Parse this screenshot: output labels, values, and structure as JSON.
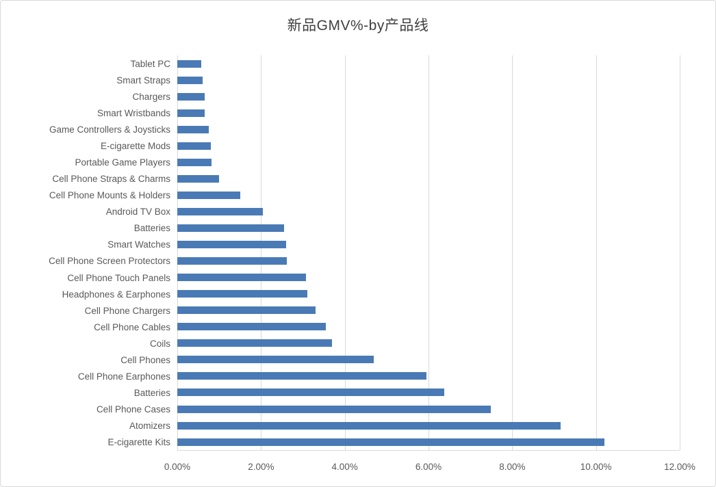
{
  "chart_data": {
    "type": "bar",
    "orientation": "horizontal",
    "title": "新品GMV%-by产品线",
    "categories": [
      "Tablet PC",
      "Smart Straps",
      "Chargers",
      "Smart Wristbands",
      "Game Controllers & Joysticks",
      "E-cigarette Mods",
      "Portable Game Players",
      "Cell Phone Straps & Charms",
      "Cell Phone Mounts & Holders",
      "Android TV Box",
      "Batteries",
      "Smart Watches",
      "Cell Phone Screen Protectors",
      "Cell Phone Touch Panels",
      "Headphones & Earphones",
      "Cell Phone Chargers",
      "Cell Phone Cables",
      "Coils",
      "Cell Phones",
      "Cell Phone Earphones",
      "Batteries",
      "Cell Phone Cases",
      "Atomizers",
      "E-cigarette Kits"
    ],
    "values": [
      0.57,
      0.6,
      0.65,
      0.66,
      0.75,
      0.8,
      0.82,
      1.0,
      1.5,
      2.05,
      2.55,
      2.6,
      2.62,
      3.08,
      3.1,
      3.3,
      3.55,
      3.7,
      4.7,
      5.95,
      6.38,
      7.48,
      9.15,
      10.2
    ],
    "value_unit": "%",
    "xlabel": "",
    "ylabel": "",
    "xlim": [
      0,
      12
    ],
    "x_tick_values": [
      0,
      2,
      4,
      6,
      8,
      10,
      12
    ],
    "x_tick_labels": [
      "0.00%",
      "2.00%",
      "4.00%",
      "6.00%",
      "8.00%",
      "10.00%",
      "12.00%"
    ],
    "grid": true,
    "legend": false,
    "bar_color": "#4a7ab5",
    "grid_color": "#d9d9d9",
    "label_color": "#595959",
    "title_color": "#404040"
  }
}
